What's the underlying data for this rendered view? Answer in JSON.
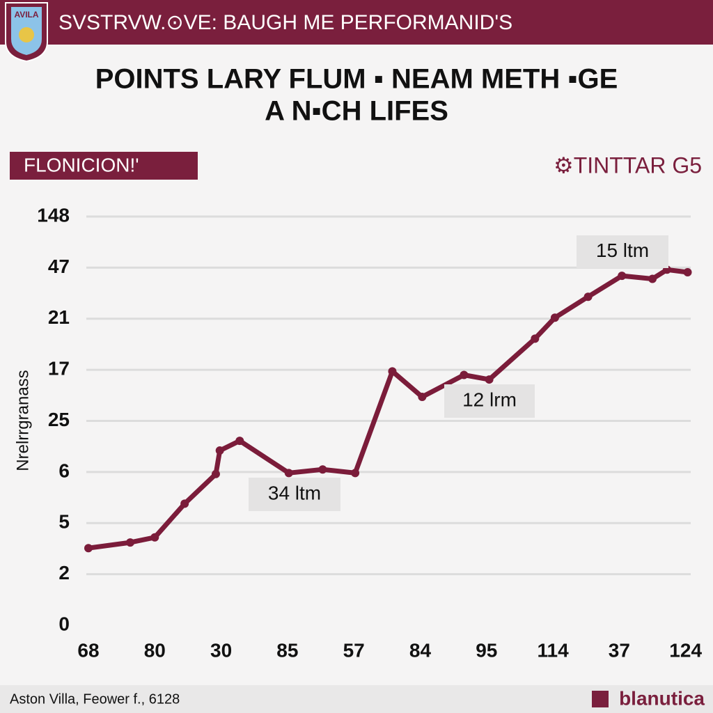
{
  "header": {
    "badge": "AVILA",
    "title": "SVSTRVW.⊙VE: BAUGH ME PERFORMANID'S"
  },
  "chart_data": {
    "type": "line",
    "title_lines": [
      "POINTS LARY FLUM ▪ NEAM METH ▪GE",
      "A N▪CH LIFES"
    ],
    "tag": "FLONICION!'",
    "brand": "⚙TINTTAR G5",
    "ylabel": "Nrelrrgranass",
    "color": "#7b1c3a",
    "grid": true,
    "xlim": [
      -0.3,
      9.1
    ],
    "xticks": [
      {
        "value": 0,
        "label": "68"
      },
      {
        "value": 1,
        "label": "80"
      },
      {
        "value": 2,
        "label": "30"
      },
      {
        "value": 3,
        "label": "85"
      },
      {
        "value": 4,
        "label": "57"
      },
      {
        "value": 5,
        "label": "84"
      },
      {
        "value": 6,
        "label": "95"
      },
      {
        "value": 7,
        "label": "114"
      },
      {
        "value": 8,
        "label": "37"
      },
      {
        "value": 9,
        "label": "124"
      }
    ],
    "ylim": [
      0,
      8
    ],
    "yticks": [
      {
        "value": 0,
        "label": "0"
      },
      {
        "value": 1,
        "label": "2"
      },
      {
        "value": 2,
        "label": "5"
      },
      {
        "value": 3,
        "label": "6"
      },
      {
        "value": 4,
        "label": "25"
      },
      {
        "value": 5,
        "label": "17"
      },
      {
        "value": 6,
        "label": "21"
      },
      {
        "value": 7,
        "label": "47"
      },
      {
        "value": 8,
        "label": "148"
      }
    ],
    "x": [
      0,
      0.63,
      1,
      1.45,
      1.92,
      1.98,
      2.28,
      3.02,
      3.53,
      4.02,
      4.58,
      5.03,
      5.66,
      6.04,
      6.73,
      7.03,
      7.53,
      8.04,
      8.5,
      8.72,
      9.03
    ],
    "values": [
      1.51,
      1.62,
      1.72,
      2.38,
      2.96,
      3.42,
      3.61,
      2.98,
      3.05,
      2.98,
      4.97,
      4.47,
      4.9,
      4.81,
      5.61,
      6.02,
      6.43,
      6.84,
      6.78,
      6.96,
      6.91
    ],
    "annotations": [
      "15 ltm",
      "12 lrm",
      "34 ltm"
    ]
  },
  "footer": {
    "left": "Aston Villa, Feower f., 6128",
    "right": "blanutica"
  }
}
